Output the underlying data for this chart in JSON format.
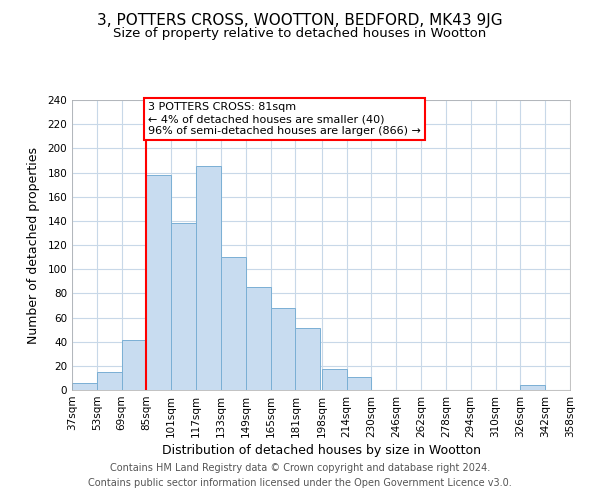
{
  "title": "3, POTTERS CROSS, WOOTTON, BEDFORD, MK43 9JG",
  "subtitle": "Size of property relative to detached houses in Wootton",
  "xlabel": "Distribution of detached houses by size in Wootton",
  "ylabel": "Number of detached properties",
  "footer_lines": [
    "Contains HM Land Registry data © Crown copyright and database right 2024.",
    "Contains public sector information licensed under the Open Government Licence v3.0."
  ],
  "bin_labels": [
    "37sqm",
    "53sqm",
    "69sqm",
    "85sqm",
    "101sqm",
    "117sqm",
    "133sqm",
    "149sqm",
    "165sqm",
    "181sqm",
    "198sqm",
    "214sqm",
    "230sqm",
    "246sqm",
    "262sqm",
    "278sqm",
    "294sqm",
    "310sqm",
    "326sqm",
    "342sqm",
    "358sqm"
  ],
  "bin_edges": [
    37,
    53,
    69,
    85,
    101,
    117,
    133,
    149,
    165,
    181,
    198,
    214,
    230,
    246,
    262,
    278,
    294,
    310,
    326,
    342,
    358
  ],
  "bar_heights": [
    6,
    15,
    41,
    178,
    138,
    185,
    110,
    85,
    68,
    51,
    17,
    11,
    0,
    0,
    0,
    0,
    0,
    0,
    4,
    0
  ],
  "bar_color": "#c8dcf0",
  "bar_edgecolor": "#7aafd4",
  "grid_color": "#c8d8e8",
  "redline_x": 85,
  "annotation_text": "3 POTTERS CROSS: 81sqm\n← 4% of detached houses are smaller (40)\n96% of semi-detached houses are larger (866) →",
  "annotation_boxcolor": "white",
  "annotation_edgecolor": "red",
  "ylim": [
    0,
    240
  ],
  "yticks": [
    0,
    20,
    40,
    60,
    80,
    100,
    120,
    140,
    160,
    180,
    200,
    220,
    240
  ],
  "bg_color": "white",
  "title_fontsize": 11,
  "subtitle_fontsize": 9.5,
  "axis_label_fontsize": 9,
  "tick_fontsize": 7.5,
  "footer_fontsize": 7,
  "annotation_fontsize": 8
}
